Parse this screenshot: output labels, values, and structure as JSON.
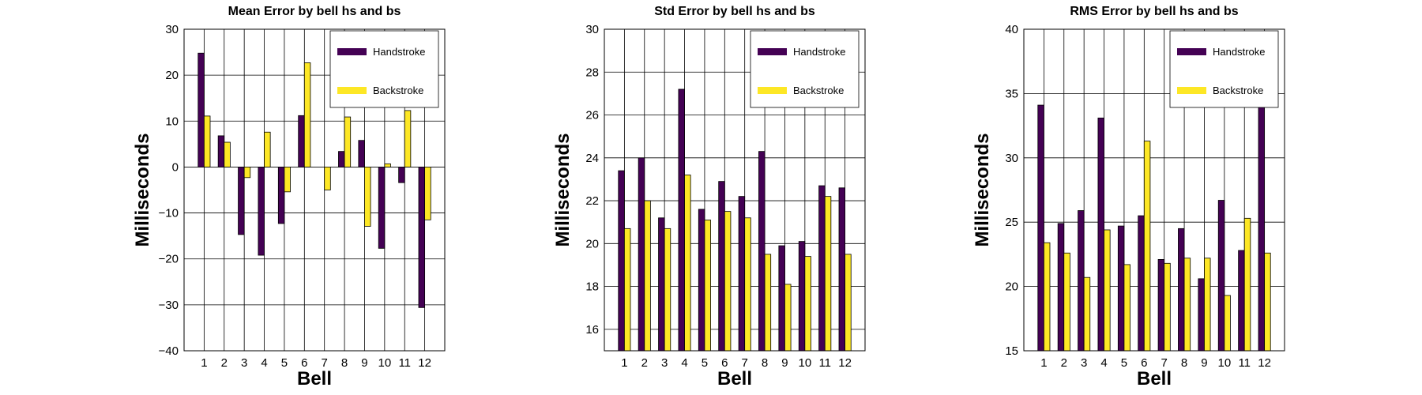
{
  "colors": {
    "handstroke": "#440154",
    "backstroke": "#fde725",
    "grid": "#000000"
  },
  "chart_data": [
    {
      "type": "bar",
      "title": "Mean Error by bell hs and bs",
      "xlabel": "Bell",
      "ylabel": "Milliseconds",
      "categories": [
        "1",
        "2",
        "3",
        "4",
        "5",
        "6",
        "7",
        "8",
        "9",
        "10",
        "11",
        "12"
      ],
      "xlim": [
        0,
        13
      ],
      "ylim": [
        -40,
        30
      ],
      "yticks": [
        30,
        20,
        10,
        0,
        -10,
        -20,
        -30,
        -40
      ],
      "ytick_labels": [
        "30",
        "20",
        "10",
        "0",
        "−10",
        "−20",
        "−30",
        "−40"
      ],
      "grid": true,
      "legend": "top-right",
      "series": [
        {
          "name": "Handstroke",
          "values": [
            24.8,
            6.8,
            -14.7,
            -19.2,
            -12.3,
            11.2,
            0,
            3.4,
            5.8,
            -17.7,
            -3.4,
            -30.6
          ]
        },
        {
          "name": "Backstroke",
          "values": [
            11.1,
            5.4,
            -2.3,
            7.6,
            -5.4,
            22.7,
            -5.0,
            10.9,
            -12.9,
            0.7,
            12.3,
            -11.5
          ]
        }
      ]
    },
    {
      "type": "bar",
      "title": "Std Error by bell hs and bs",
      "xlabel": "Bell",
      "ylabel": "Milliseconds",
      "categories": [
        "1",
        "2",
        "3",
        "4",
        "5",
        "6",
        "7",
        "8",
        "9",
        "10",
        "11",
        "12"
      ],
      "xlim": [
        0,
        13
      ],
      "ylim": [
        15,
        30
      ],
      "yticks": [
        30,
        28,
        26,
        24,
        22,
        20,
        18,
        16
      ],
      "ytick_labels": [
        "30",
        "28",
        "26",
        "24",
        "22",
        "20",
        "18",
        "16"
      ],
      "grid": true,
      "legend": "top-right",
      "series": [
        {
          "name": "Handstroke",
          "values": [
            23.4,
            24.0,
            21.2,
            27.2,
            21.6,
            22.9,
            22.2,
            24.3,
            19.9,
            20.1,
            22.7,
            22.6
          ]
        },
        {
          "name": "Backstroke",
          "values": [
            20.7,
            22.0,
            20.7,
            23.2,
            21.1,
            21.5,
            21.2,
            19.5,
            18.1,
            19.4,
            22.2,
            19.5
          ]
        }
      ]
    },
    {
      "type": "bar",
      "title": "RMS Error by bell hs and bs",
      "xlabel": "Bell",
      "ylabel": "Milliseconds",
      "categories": [
        "1",
        "2",
        "3",
        "4",
        "5",
        "6",
        "7",
        "8",
        "9",
        "10",
        "11",
        "12"
      ],
      "xlim": [
        0,
        13
      ],
      "ylim": [
        15,
        40
      ],
      "yticks": [
        40,
        35,
        30,
        25,
        20,
        15
      ],
      "ytick_labels": [
        "40",
        "35",
        "30",
        "25",
        "20",
        "15"
      ],
      "grid": true,
      "legend": "top-right",
      "series": [
        {
          "name": "Handstroke",
          "values": [
            34.1,
            24.9,
            25.9,
            33.1,
            24.7,
            25.5,
            22.1,
            24.5,
            20.6,
            26.7,
            22.8,
            38.1
          ]
        },
        {
          "name": "Backstroke",
          "values": [
            23.4,
            22.6,
            20.7,
            24.4,
            21.7,
            31.3,
            21.8,
            22.2,
            22.2,
            19.3,
            25.3,
            22.6
          ]
        }
      ]
    }
  ]
}
